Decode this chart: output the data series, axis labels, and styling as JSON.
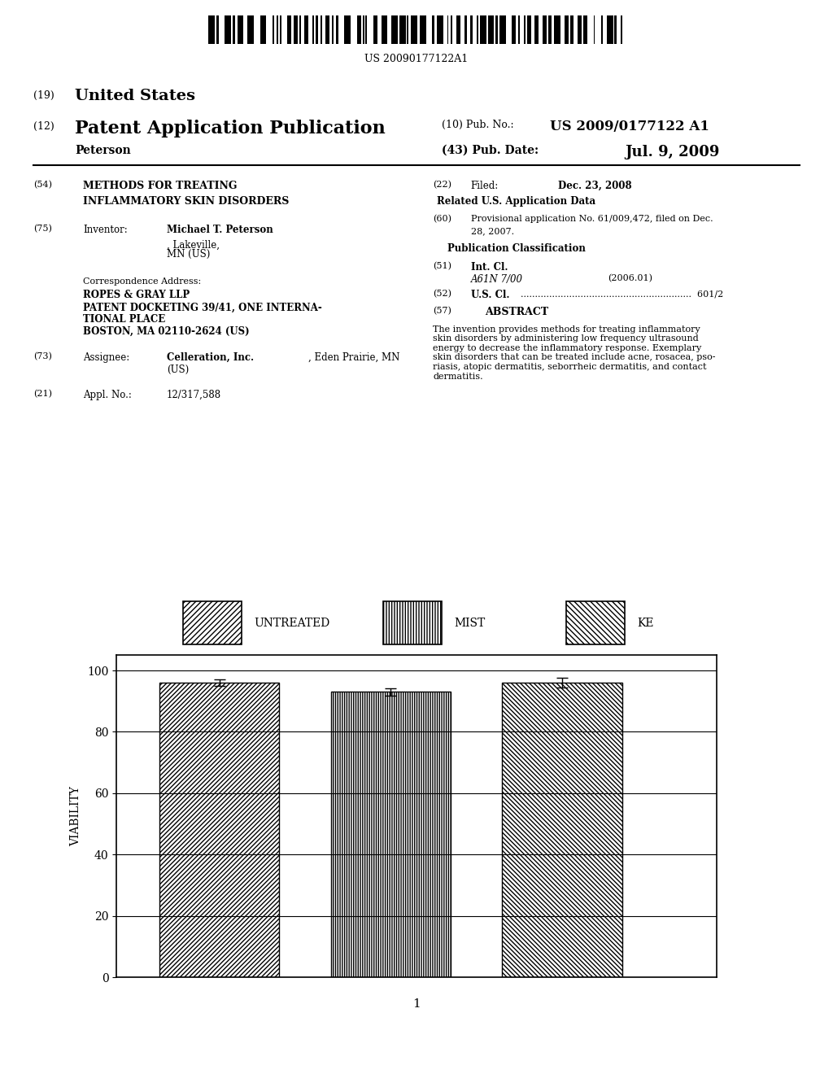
{
  "title": "",
  "ylabel": "VIABILITY",
  "xlabel": "1",
  "ylim": [
    0,
    105
  ],
  "yticks": [
    0,
    20,
    40,
    60,
    80,
    100
  ],
  "bar_labels": [
    "UNTREATED",
    "MIST",
    "KE"
  ],
  "bar_values": [
    96.0,
    93.0,
    96.0
  ],
  "bar_errors": [
    1.0,
    1.2,
    1.5
  ],
  "bar_positions": [
    1,
    2,
    3
  ],
  "bar_width": 0.7,
  "hatch_patterns": [
    "/",
    "|",
    "\\"
  ],
  "bar_facecolor": "white",
  "bar_edgecolor": "black",
  "legend_labels": [
    "UNTREATED",
    "MIST",
    "KE"
  ],
  "legend_hatches": [
    "/",
    "|",
    "\\"
  ],
  "background_color": "white",
  "fig_label": "1",
  "errorbar_color": "black",
  "errorbar_capsize": 5,
  "grid_color": "black",
  "grid_linewidth": 0.8
}
